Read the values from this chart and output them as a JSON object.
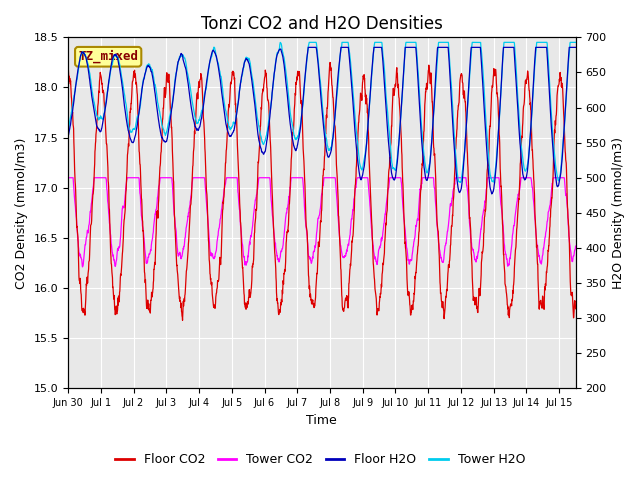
{
  "title": "Tonzi CO2 and H2O Densities",
  "xlabel": "Time",
  "ylabel_left": "CO2 Density (mmol/m3)",
  "ylabel_right": "H2O Density (mmol/m3)",
  "ylim_left": [
    15.0,
    18.5
  ],
  "ylim_right": [
    200,
    700
  ],
  "yticks_left": [
    15.0,
    15.5,
    16.0,
    16.5,
    17.0,
    17.5,
    18.0,
    18.5
  ],
  "yticks_right": [
    200,
    250,
    300,
    350,
    400,
    450,
    500,
    550,
    600,
    650,
    700
  ],
  "colors": {
    "floor_co2": "#dd0000",
    "tower_co2": "#ff00ff",
    "floor_h2o": "#0000bb",
    "tower_h2o": "#00ccee"
  },
  "annotation_text": "TZ_mixed",
  "annotation_color": "#880000",
  "annotation_bg": "#ffff99",
  "annotation_border": "#aa8800",
  "background_color": "#e8e8e8",
  "grid_color": "#ffffff",
  "title_fontsize": 12,
  "label_fontsize": 9,
  "tick_fontsize": 8,
  "legend_fontsize": 9
}
